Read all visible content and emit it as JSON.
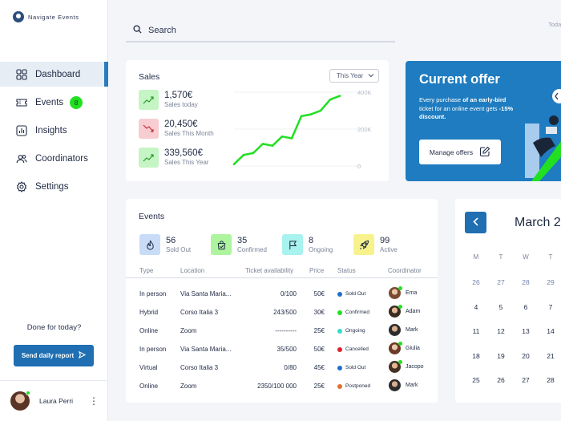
{
  "app": {
    "name": "Navigate Events"
  },
  "sidebar": {
    "items": [
      {
        "label": "Dashboard",
        "icon": "dashboard-icon",
        "active": true
      },
      {
        "label": "Events",
        "icon": "ticket-icon",
        "badge": "8"
      },
      {
        "label": "Insights",
        "icon": "chart-icon"
      },
      {
        "label": "Coordinators",
        "icon": "users-icon"
      },
      {
        "label": "Settings",
        "icon": "gear-icon"
      }
    ],
    "done_text": "Done for today?",
    "report_button": "Send daily report",
    "user_name": "Laura Perri"
  },
  "header": {
    "search_placeholder": "Search",
    "today": "Toda"
  },
  "sales": {
    "title": "Sales",
    "period": "This Year",
    "stats": [
      {
        "value": "1,570€",
        "label": "Sales today",
        "trend": "up"
      },
      {
        "value": "20,450€",
        "label": "Sales This Month",
        "trend": "down"
      },
      {
        "value": "339,560€",
        "label": "Sales This Year",
        "trend": "up"
      }
    ],
    "chart_data": {
      "type": "line",
      "y_ticks": [
        "400K",
        "200K",
        "0"
      ],
      "ylim": [
        0,
        400000
      ],
      "values": [
        10000,
        60000,
        70000,
        120000,
        110000,
        160000,
        150000,
        270000,
        280000,
        300000,
        360000,
        380000
      ],
      "color": "#21e021"
    }
  },
  "offer": {
    "title": "Current offer",
    "text_pre": "Every purchase ",
    "text_bold1": "of an early-bird",
    "text_mid": " ticket for an online event gets ",
    "text_bold2": "-15% discount.",
    "button": "Manage offers"
  },
  "events": {
    "title": "Events",
    "kpis": [
      {
        "value": "56",
        "label": "Sold Out",
        "color": "#c8dcf8",
        "icon": "fire-icon"
      },
      {
        "value": "35",
        "label": "Confirmed",
        "color": "#aef39e",
        "icon": "bag-icon"
      },
      {
        "value": "8",
        "label": "Ongoing",
        "color": "#a8f2ef",
        "icon": "flag-icon"
      },
      {
        "value": "99",
        "label": "Active",
        "color": "#f7f28c",
        "icon": "rocket-icon"
      }
    ],
    "columns": [
      "Type",
      "Location",
      "Ticket availability",
      "Price",
      "Status",
      "Coordinator"
    ],
    "rows": [
      {
        "type": "In person",
        "location": "Via Santa Maria...",
        "tickets": "0/100",
        "price": "50€",
        "status": "Sold Out",
        "status_color": "#1f6fd0",
        "coordinator": "Ema"
      },
      {
        "type": "Hybrid",
        "location": "Corso Italia 3",
        "tickets": "243/500",
        "price": "30€",
        "status": "Confirmed",
        "status_color": "#21e021",
        "coordinator": "Adam"
      },
      {
        "type": "Online",
        "location": "Zoom",
        "tickets": "----------",
        "price": "25€",
        "status": "Ongoing",
        "status_color": "#2ee0c8",
        "coordinator": "Mark"
      },
      {
        "type": "In person",
        "location": "Via Santa Maria...",
        "tickets": "35/500",
        "price": "50€",
        "status": "Cancelled",
        "status_color": "#e0202e",
        "coordinator": "Giulia"
      },
      {
        "type": "Virtual",
        "location": "Corso Italia 3",
        "tickets": "0/80",
        "price": "45€",
        "status": "Sold Out",
        "status_color": "#1f6fd0",
        "coordinator": "Jacopo"
      },
      {
        "type": "Online",
        "location": "Zoom",
        "tickets": "2350/100 000",
        "price": "25€",
        "status": "Postponed",
        "status_color": "#e0702e",
        "coordinator": "Mark"
      }
    ]
  },
  "calendar": {
    "month": "March 2",
    "weekdays": [
      "M",
      "T",
      "W",
      "T"
    ],
    "weeks": [
      [
        "26",
        "27",
        "28",
        "29"
      ],
      [
        "4",
        "5",
        "6",
        "7"
      ],
      [
        "11",
        "12",
        "13",
        "14"
      ],
      [
        "18",
        "19",
        "20",
        "21"
      ],
      [
        "25",
        "26",
        "27",
        "28"
      ]
    ]
  }
}
